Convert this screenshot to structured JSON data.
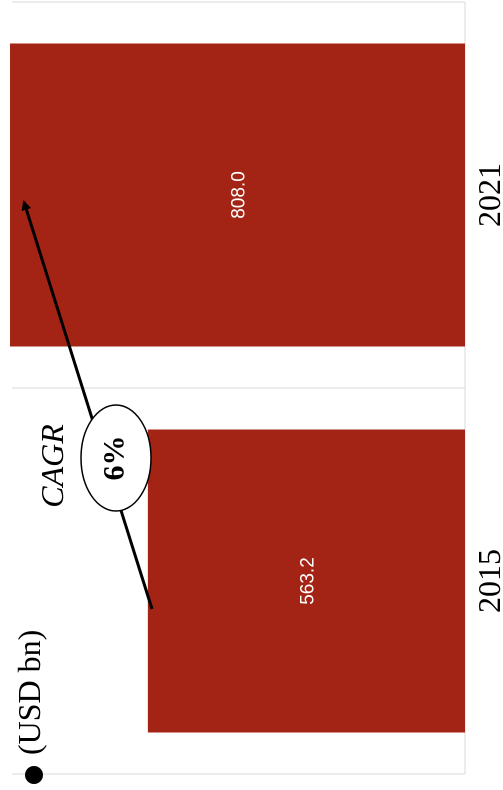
{
  "chart_data": {
    "type": "bar",
    "orientation": "rotated-90-ccw",
    "unit_label": "(USD bn)",
    "categories": [
      "2015",
      "2021"
    ],
    "values": [
      563.2,
      808.0
    ],
    "value_labels": [
      "563.2",
      "808.0"
    ],
    "annotation": {
      "title": "CAGR",
      "value": "6%"
    },
    "bar_color": "#a32315",
    "grid": true
  }
}
